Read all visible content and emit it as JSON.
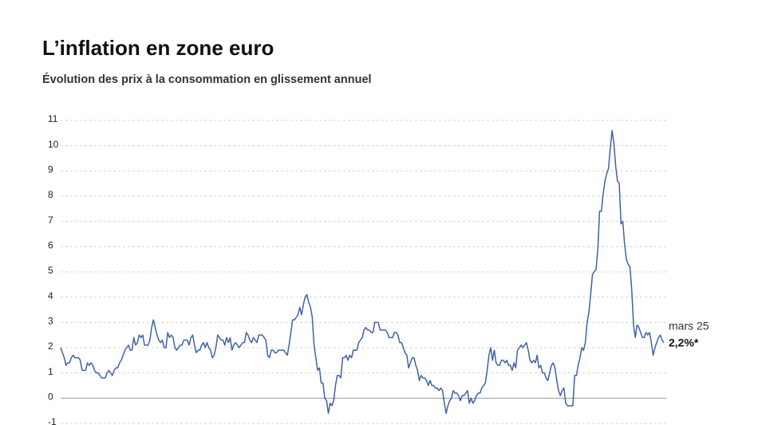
{
  "chart_data": {
    "type": "line",
    "title": "L’inflation en zone euro",
    "subtitle": "Évolution des prix à la consommation en glissement annuel",
    "annotation": "mars 25",
    "annotation_value": "2,2%*",
    "color": "#3f62a6",
    "grid": true,
    "ylim": [
      -1,
      11
    ],
    "yticks": [
      -1,
      0,
      1,
      2,
      3,
      4,
      5,
      6,
      7,
      8,
      9,
      10,
      11
    ],
    "values": [
      2.0,
      1.8,
      1.6,
      1.3,
      1.4,
      1.4,
      1.6,
      1.7,
      1.6,
      1.6,
      1.6,
      1.5,
      1.1,
      1.1,
      1.1,
      1.4,
      1.3,
      1.4,
      1.3,
      1.1,
      1.0,
      1.0,
      0.9,
      0.8,
      0.8,
      0.8,
      1.0,
      1.1,
      1.0,
      0.9,
      1.1,
      1.2,
      1.2,
      1.4,
      1.5,
      1.7,
      1.9,
      2.0,
      2.1,
      1.9,
      1.9,
      2.4,
      2.1,
      2.2,
      2.5,
      2.4,
      2.5,
      2.1,
      2.1,
      2.1,
      2.3,
      2.8,
      3.1,
      2.8,
      2.5,
      2.3,
      2.2,
      2.3,
      2.0,
      2.0,
      2.6,
      2.4,
      2.5,
      2.4,
      2.0,
      1.9,
      2.0,
      2.1,
      2.1,
      2.3,
      2.3,
      2.3,
      2.1,
      2.4,
      2.5,
      2.1,
      1.8,
      1.9,
      1.9,
      2.1,
      2.2,
      2.0,
      2.2,
      2.0,
      1.9,
      1.6,
      1.7,
      2.0,
      2.5,
      2.4,
      2.3,
      2.3,
      2.1,
      2.4,
      2.2,
      2.4,
      1.9,
      2.1,
      2.2,
      2.1,
      2.0,
      2.1,
      2.2,
      2.2,
      2.6,
      2.5,
      2.3,
      2.2,
      2.4,
      2.3,
      2.2,
      2.5,
      2.5,
      2.5,
      2.4,
      2.3,
      1.7,
      1.6,
      1.9,
      1.9,
      1.8,
      1.8,
      1.9,
      1.9,
      1.9,
      1.9,
      1.8,
      1.7,
      2.1,
      2.6,
      3.1,
      3.1,
      3.2,
      3.3,
      3.6,
      3.3,
      3.7,
      4.0,
      4.1,
      3.8,
      3.6,
      3.2,
      2.1,
      1.6,
      1.1,
      1.2,
      0.6,
      0.6,
      0.0,
      -0.1,
      -0.6,
      -0.2,
      -0.3,
      -0.1,
      0.5,
      0.9,
      0.9,
      0.8,
      1.6,
      1.6,
      1.7,
      1.5,
      1.7,
      1.6,
      1.9,
      1.9,
      1.9,
      2.2,
      2.3,
      2.4,
      2.7,
      2.8,
      2.7,
      2.7,
      2.6,
      2.6,
      3.0,
      3.0,
      3.0,
      2.7,
      2.7,
      2.7,
      2.7,
      2.6,
      2.4,
      2.4,
      2.4,
      2.6,
      2.6,
      2.5,
      2.2,
      2.2,
      2.0,
      1.8,
      1.7,
      1.2,
      1.4,
      1.6,
      1.6,
      1.3,
      1.1,
      0.7,
      0.9,
      0.8,
      0.8,
      0.7,
      0.5,
      0.7,
      0.5,
      0.5,
      0.4,
      0.4,
      0.3,
      0.4,
      0.3,
      -0.2,
      -0.6,
      -0.3,
      -0.1,
      0.0,
      0.3,
      0.2,
      0.2,
      0.1,
      -0.1,
      0.1,
      0.1,
      0.2,
      0.3,
      -0.2,
      0.0,
      -0.2,
      -0.1,
      0.1,
      0.2,
      0.2,
      0.4,
      0.5,
      0.6,
      1.1,
      1.7,
      2.0,
      1.5,
      1.9,
      1.4,
      1.3,
      1.3,
      1.5,
      1.5,
      1.4,
      1.5,
      1.3,
      1.3,
      1.1,
      1.4,
      1.2,
      1.9,
      2.0,
      2.1,
      2.0,
      2.1,
      2.2,
      1.9,
      1.5,
      1.4,
      1.5,
      1.4,
      1.7,
      1.2,
      1.3,
      1.0,
      1.0,
      0.8,
      0.7,
      1.0,
      1.3,
      1.4,
      1.2,
      0.7,
      0.3,
      0.1,
      0.3,
      0.4,
      -0.2,
      -0.3,
      -0.3,
      -0.3,
      -0.3,
      0.9,
      0.9,
      1.3,
      1.6,
      2.0,
      1.9,
      2.2,
      3.0,
      3.4,
      4.1,
      4.9,
      5.0,
      5.1,
      5.9,
      7.4,
      7.4,
      8.1,
      8.6,
      8.9,
      9.1,
      9.9,
      10.6,
      10.1,
      9.2,
      8.6,
      8.5,
      6.9,
      7.0,
      6.1,
      5.5,
      5.3,
      5.2,
      4.3,
      2.9,
      2.4,
      2.9,
      2.8,
      2.6,
      2.4,
      2.4,
      2.6,
      2.5,
      2.6,
      2.2,
      1.7,
      2.0,
      2.2,
      2.4,
      2.5,
      2.3,
      2.2
    ]
  }
}
